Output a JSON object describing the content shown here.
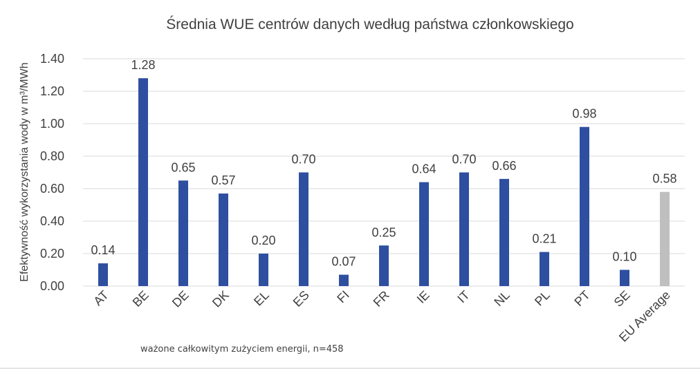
{
  "colors": {
    "bar": "#2e4fa0",
    "highlight": "#bfbfbf",
    "text": "#404040",
    "grid": "#d9d9d9"
  },
  "note": "ważone całkowitym zużyciem energii, n=458",
  "chart_data": {
    "type": "bar",
    "title": "Średnia WUE centrów danych według państwa członkowskiego",
    "xlabel": "",
    "ylabel": "Efektywność wykorzystania wody w m³/MWh",
    "ylim": [
      0,
      1.4
    ],
    "yticks": [
      "0.00",
      "0.20",
      "0.40",
      "0.60",
      "0.80",
      "1.00",
      "1.20",
      "1.40"
    ],
    "grid": true,
    "legend": "none",
    "categories": [
      "AT",
      "BE",
      "DE",
      "DK",
      "EL",
      "ES",
      "FI",
      "FR",
      "IE",
      "IT",
      "NL",
      "PL",
      "PT",
      "SE",
      "EU Average"
    ],
    "values": [
      0.14,
      1.28,
      0.65,
      0.57,
      0.2,
      0.7,
      0.07,
      0.25,
      0.64,
      0.7,
      0.66,
      0.21,
      0.98,
      0.1,
      0.58
    ],
    "value_labels": [
      "0.14",
      "1.28",
      "0.65",
      "0.57",
      "0.20",
      "0.70",
      "0.07",
      "0.25",
      "0.64",
      "0.70",
      "0.66",
      "0.21",
      "0.98",
      "0.10",
      "0.58"
    ],
    "highlight_category": "EU Average"
  }
}
